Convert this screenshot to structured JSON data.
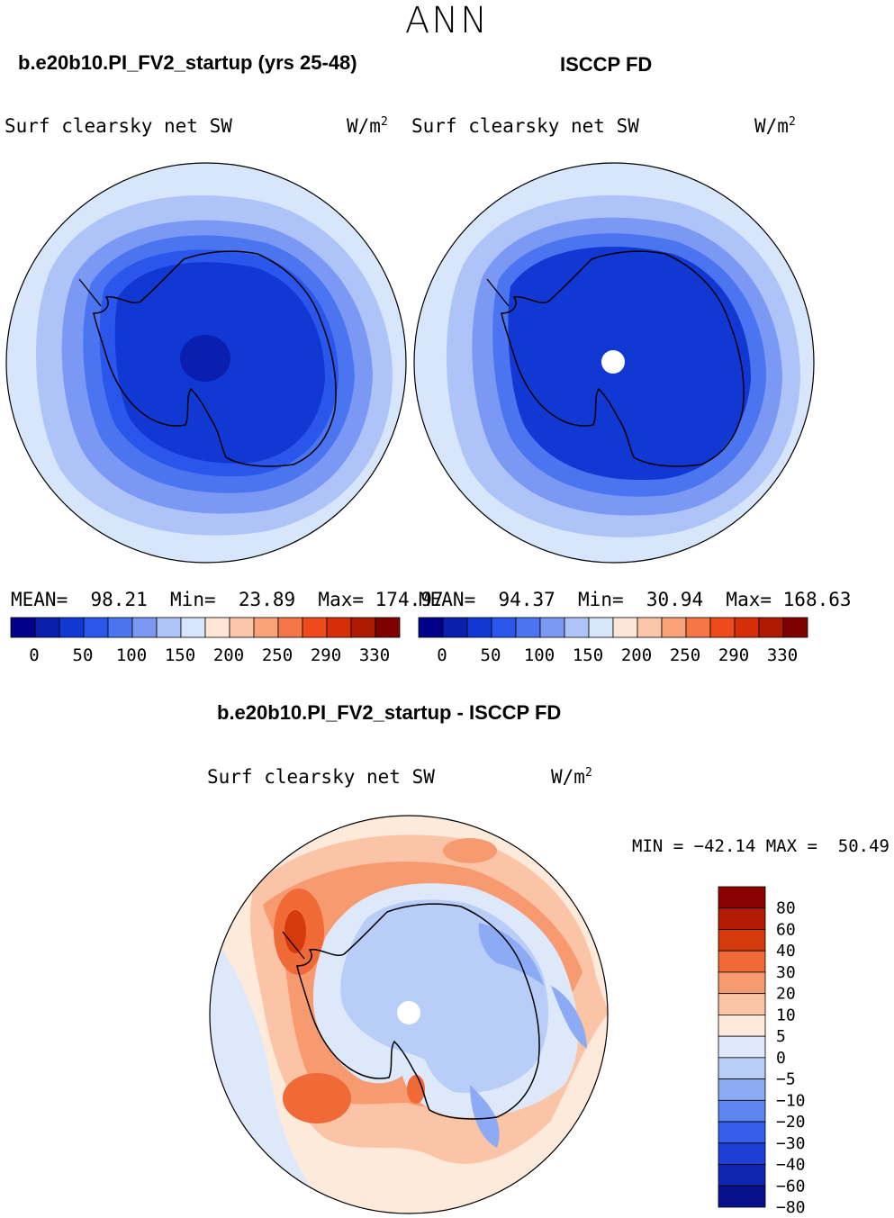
{
  "figure_title": "ANN",
  "panels": [
    {
      "case_title": "b.e20b10.PI_FV2_startup (yrs 25-48)",
      "variable": "Surf clearsky net SW",
      "units": "W/m",
      "units_exp": "2",
      "stats": {
        "mean_label": "MEAN=",
        "mean": "98.21",
        "min_label": "Min=",
        "min": "23.89",
        "max_label": "Max=",
        "max": "174.97"
      }
    },
    {
      "case_title": "ISCCP FD",
      "variable": "Surf clearsky net SW",
      "units": "W/m",
      "units_exp": "2",
      "stats": {
        "mean_label": "MEAN=",
        "mean": "94.37",
        "min_label": "Min=",
        "min": "30.94",
        "max_label": "Max=",
        "max": "168.63"
      }
    }
  ],
  "colorbar_top": {
    "colors": [
      "#00008b",
      "#0a1fb0",
      "#1238d4",
      "#2a56ec",
      "#4b74f0",
      "#7b98f4",
      "#aec4f8",
      "#d7e6fb",
      "#fde6d6",
      "#fcc6aa",
      "#f9a27a",
      "#f57646",
      "#ee4a1c",
      "#d62e08",
      "#ae1a02",
      "#800000"
    ],
    "labels": [
      "0",
      "50",
      "100",
      "150",
      "200",
      "250",
      "290",
      "330"
    ]
  },
  "diff": {
    "case_title": "b.e20b10.PI_FV2_startup - ISCCP FD",
    "variable": "Surf clearsky net SW",
    "units": "W/m",
    "units_exp": "2",
    "stats": "MIN = −42.14 MAX =  50.49",
    "colorbar": {
      "colors_top_to_bottom": [
        "#8b0000",
        "#b31a02",
        "#d63a0c",
        "#f06a38",
        "#f89a70",
        "#fcc4a6",
        "#feeadb",
        "#dde9fb",
        "#b8cdf8",
        "#8daaf4",
        "#5f86f0",
        "#355eec",
        "#1c3fd8",
        "#0f27b0",
        "#05108a"
      ],
      "labels": [
        "80",
        "60",
        "40",
        "30",
        "20",
        "10",
        "5",
        "0",
        "−5",
        "−10",
        "−20",
        "−30",
        "−40",
        "−60",
        "−80"
      ]
    }
  },
  "colors": {
    "ocean_outer": "#d7e6fb",
    "land_dark": "#0a2fcf"
  }
}
